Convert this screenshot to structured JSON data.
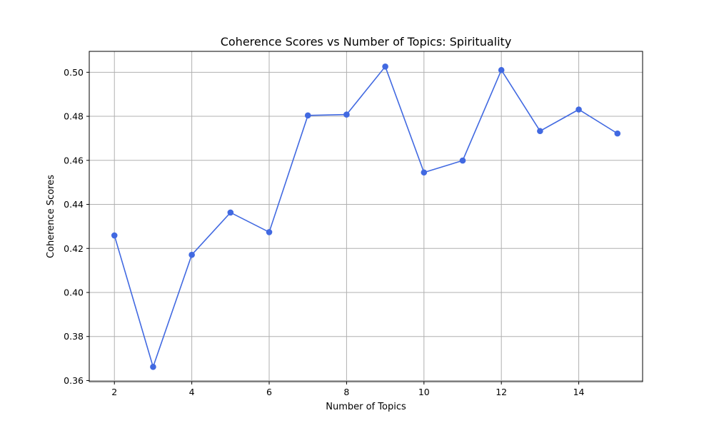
{
  "chart_data": {
    "type": "line",
    "title": "Coherence Scores vs Number of Topics: Spirituality",
    "xlabel": "Number of Topics",
    "ylabel": "Coherence Scores",
    "xlim": [
      1.35,
      15.65
    ],
    "ylim": [
      0.3595,
      0.5095
    ],
    "x_ticks": [
      2,
      4,
      6,
      8,
      10,
      12,
      14
    ],
    "y_ticks": [
      0.36,
      0.38,
      0.4,
      0.42,
      0.44,
      0.46,
      0.48,
      0.5
    ],
    "x_tick_labels": [
      "2",
      "4",
      "6",
      "8",
      "10",
      "12",
      "14"
    ],
    "y_tick_labels": [
      "0.36",
      "0.38",
      "0.40",
      "0.42",
      "0.44",
      "0.46",
      "0.48",
      "0.50"
    ],
    "grid": true,
    "line_color": "#4169e1",
    "marker": "circle",
    "series": [
      {
        "x": [
          2,
          3,
          4,
          5,
          6,
          7,
          8,
          9,
          10,
          11,
          12,
          13,
          14,
          15
        ],
        "values": [
          0.4259,
          0.3662,
          0.4171,
          0.4363,
          0.4274,
          0.4804,
          0.4808,
          0.5026,
          0.4545,
          0.4599,
          0.501,
          0.4733,
          0.4831,
          0.4722
        ]
      }
    ]
  }
}
